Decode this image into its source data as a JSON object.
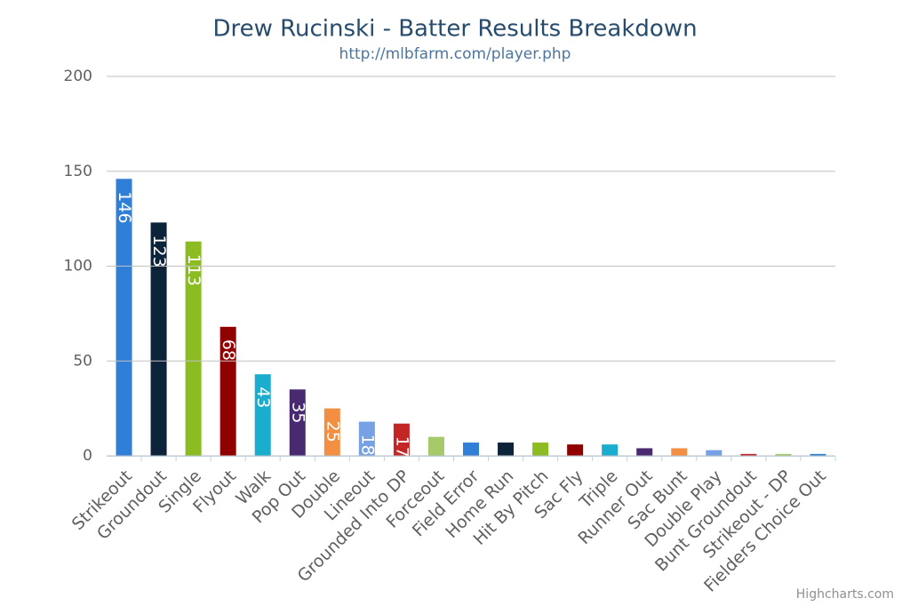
{
  "chart_data": {
    "type": "bar",
    "title": "Drew Rucinski - Batter Results Breakdown",
    "subtitle": "http://mlbfarm.com/player.php",
    "credits": "Highcharts.com",
    "categories": [
      "Strikeout",
      "Groundout",
      "Single",
      "Flyout",
      "Walk",
      "Pop Out",
      "Double",
      "Lineout",
      "Grounded Into DP",
      "Forceout",
      "Field Error",
      "Home Run",
      "Hit By Pitch",
      "Sac Fly",
      "Triple",
      "Runner Out",
      "Sac Bunt",
      "Double Play",
      "Bunt Groundout",
      "Strikeout - DP",
      "Fielders Choice Out"
    ],
    "values": [
      146,
      123,
      113,
      68,
      43,
      35,
      25,
      18,
      17,
      10,
      7,
      7,
      7,
      6,
      6,
      4,
      4,
      3,
      1,
      1,
      1
    ],
    "value_labels": [
      "146",
      "123",
      "113",
      "68",
      "43",
      "35",
      "25",
      "18",
      "17",
      null,
      null,
      null,
      null,
      null,
      null,
      null,
      null,
      null,
      null,
      null,
      null
    ],
    "colors": [
      "#2f7ed8",
      "#0d233a",
      "#8bbc21",
      "#910000",
      "#1aadce",
      "#492970",
      "#f28f43",
      "#77a1e5",
      "#c42525",
      "#a6c96a",
      "#2f7ed8",
      "#0d233a",
      "#8bbc21",
      "#910000",
      "#1aadce",
      "#492970",
      "#f28f43",
      "#77a1e5",
      "#c42525",
      "#a6c96a",
      "#2f7ed8"
    ],
    "ylim": [
      0,
      200
    ],
    "yticks": [
      0,
      50,
      100,
      150,
      200
    ],
    "grid": true
  }
}
